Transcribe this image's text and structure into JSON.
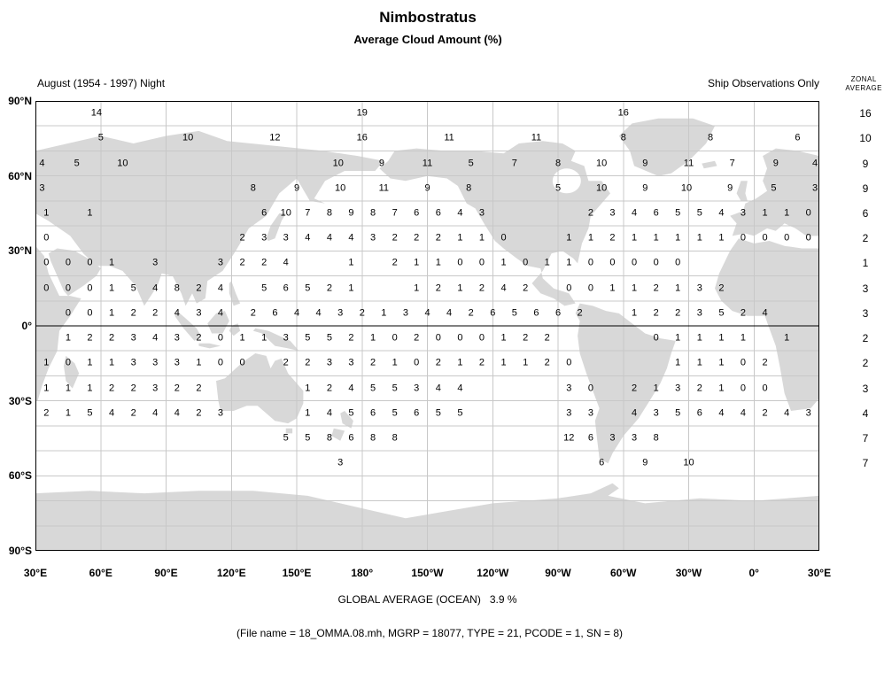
{
  "title": "Nimbostratus",
  "subtitle": "Average Cloud Amount (%)",
  "header": {
    "period_label": "August (1954 - 1997) Night",
    "source_label": "Ship Observations Only",
    "zonal_line1": "ZONAL",
    "zonal_line2": "AVERAGE"
  },
  "footer": {
    "global_average_label": "GLOBAL AVERAGE (OCEAN)   3.9 %",
    "file_info": "(File name = 18_OMMA.08.mh, MGRP = 18077, TYPE = 21, PCODE = 1, SN = 8)"
  },
  "chart_data": {
    "type": "heatmap",
    "title": "Nimbostratus — Average Cloud Amount (%)",
    "subtitle_left": "August (1954 - 1997) Night",
    "subtitle_right": "Ship Observations Only",
    "units": "percent cloud amount",
    "projection": "equirectangular world map; longitude axis runs eastward from 30°E through 180° back to 30°E (lon values 30..390)",
    "grid": "vertical lines every 30° longitude, horizontal lines every 10° latitude, equator drawn black",
    "lat_tick_labels": [
      "90°N",
      "60°N",
      "30°N",
      "0°",
      "30°S",
      "60°S",
      "90°S"
    ],
    "lat_tick_values": [
      90,
      60,
      30,
      0,
      -30,
      -60,
      -90
    ],
    "lon_tick_labels": [
      "30°E",
      "60°E",
      "90°E",
      "120°E",
      "150°E",
      "180°",
      "150°W",
      "120°W",
      "90°W",
      "60°W",
      "30°W",
      "0°",
      "30°E"
    ],
    "lon_tick_values": [
      30,
      60,
      90,
      120,
      150,
      180,
      210,
      240,
      270,
      300,
      330,
      360,
      390
    ],
    "global_average_ocean_percent": 3.9,
    "zonal_average_header": "ZONAL AVERAGE",
    "zonal_averages": [
      [
        85,
        16
      ],
      [
        75,
        10
      ],
      [
        65,
        9
      ],
      [
        55,
        9
      ],
      [
        45,
        6
      ],
      [
        35,
        2
      ],
      [
        25,
        1
      ],
      [
        15,
        3
      ],
      [
        5,
        3
      ],
      [
        -5,
        2
      ],
      [
        -15,
        2
      ],
      [
        -25,
        3
      ],
      [
        -35,
        4
      ],
      [
        -45,
        7
      ],
      [
        -55,
        7
      ]
    ],
    "rows": [
      {
        "lat": 85,
        "cells": [
          [
            58,
            14
          ],
          [
            180,
            19
          ],
          [
            300,
            16
          ]
        ]
      },
      {
        "lat": 75,
        "cells": [
          [
            60,
            5
          ],
          [
            100,
            10
          ],
          [
            140,
            12
          ],
          [
            180,
            16
          ],
          [
            220,
            11
          ],
          [
            260,
            11
          ],
          [
            300,
            8
          ],
          [
            340,
            8
          ],
          [
            380,
            6
          ]
        ]
      },
      {
        "lat": 65,
        "cells": [
          [
            33,
            4
          ],
          [
            49,
            5
          ],
          [
            70,
            10
          ],
          [
            169,
            10
          ],
          [
            189,
            9
          ],
          [
            210,
            11
          ],
          [
            230,
            5
          ],
          [
            250,
            7
          ],
          [
            270,
            8
          ],
          [
            290,
            10
          ],
          [
            310,
            9
          ],
          [
            330,
            11
          ],
          [
            350,
            7
          ],
          [
            370,
            9
          ],
          [
            388,
            4
          ]
        ]
      },
      {
        "lat": 55,
        "cells": [
          [
            33,
            3
          ],
          [
            130,
            8
          ],
          [
            150,
            9
          ],
          [
            170,
            10
          ],
          [
            190,
            11
          ],
          [
            210,
            9
          ],
          [
            229,
            8
          ],
          [
            270,
            5
          ],
          [
            290,
            10
          ],
          [
            310,
            9
          ],
          [
            329,
            10
          ],
          [
            349,
            9
          ],
          [
            369,
            5
          ],
          [
            388,
            3
          ]
        ]
      },
      {
        "lat": 45,
        "cells": [
          [
            35,
            1
          ],
          [
            55,
            1
          ],
          [
            135,
            6
          ],
          [
            145,
            10
          ],
          [
            155,
            7
          ],
          [
            165,
            8
          ],
          [
            175,
            9
          ],
          [
            185,
            8
          ],
          [
            195,
            7
          ],
          [
            205,
            6
          ],
          [
            215,
            6
          ],
          [
            225,
            4
          ],
          [
            235,
            3
          ],
          [
            285,
            2
          ],
          [
            295,
            3
          ],
          [
            305,
            4
          ],
          [
            315,
            6
          ],
          [
            325,
            5
          ],
          [
            335,
            5
          ],
          [
            345,
            4
          ],
          [
            355,
            3
          ],
          [
            365,
            1
          ],
          [
            375,
            1
          ],
          [
            385,
            0
          ]
        ]
      },
      {
        "lat": 35,
        "cells": [
          [
            35,
            0
          ],
          [
            125,
            2
          ],
          [
            135,
            3
          ],
          [
            145,
            3
          ],
          [
            155,
            4
          ],
          [
            165,
            4
          ],
          [
            175,
            4
          ],
          [
            185,
            3
          ],
          [
            195,
            2
          ],
          [
            205,
            2
          ],
          [
            215,
            2
          ],
          [
            225,
            1
          ],
          [
            235,
            1
          ],
          [
            245,
            0
          ],
          [
            275,
            1
          ],
          [
            285,
            1
          ],
          [
            295,
            2
          ],
          [
            305,
            1
          ],
          [
            315,
            1
          ],
          [
            325,
            1
          ],
          [
            335,
            1
          ],
          [
            345,
            1
          ],
          [
            355,
            0
          ],
          [
            365,
            0
          ],
          [
            375,
            0
          ],
          [
            385,
            0
          ]
        ]
      },
      {
        "lat": 25,
        "cells": [
          [
            35,
            0
          ],
          [
            45,
            0
          ],
          [
            55,
            0
          ],
          [
            65,
            1
          ],
          [
            85,
            3
          ],
          [
            115,
            3
          ],
          [
            125,
            2
          ],
          [
            135,
            2
          ],
          [
            145,
            4
          ],
          [
            175,
            1
          ],
          [
            195,
            2
          ],
          [
            205,
            1
          ],
          [
            215,
            1
          ],
          [
            225,
            0
          ],
          [
            235,
            0
          ],
          [
            245,
            1
          ],
          [
            255,
            0
          ],
          [
            265,
            1
          ],
          [
            275,
            1
          ],
          [
            285,
            0
          ],
          [
            295,
            0
          ],
          [
            305,
            0
          ],
          [
            315,
            0
          ],
          [
            325,
            0
          ]
        ]
      },
      {
        "lat": 15,
        "cells": [
          [
            35,
            0
          ],
          [
            45,
            0
          ],
          [
            55,
            0
          ],
          [
            65,
            1
          ],
          [
            75,
            5
          ],
          [
            85,
            4
          ],
          [
            95,
            8
          ],
          [
            105,
            2
          ],
          [
            115,
            4
          ],
          [
            135,
            5
          ],
          [
            145,
            6
          ],
          [
            155,
            5
          ],
          [
            165,
            2
          ],
          [
            175,
            1
          ],
          [
            205,
            1
          ],
          [
            215,
            2
          ],
          [
            225,
            1
          ],
          [
            235,
            2
          ],
          [
            245,
            4
          ],
          [
            255,
            2
          ],
          [
            275,
            0
          ],
          [
            285,
            0
          ],
          [
            295,
            1
          ],
          [
            305,
            1
          ],
          [
            315,
            2
          ],
          [
            325,
            1
          ],
          [
            335,
            3
          ],
          [
            345,
            2
          ]
        ]
      },
      {
        "lat": 5,
        "cells": [
          [
            45,
            0
          ],
          [
            55,
            0
          ],
          [
            65,
            1
          ],
          [
            75,
            2
          ],
          [
            85,
            2
          ],
          [
            95,
            4
          ],
          [
            105,
            3
          ],
          [
            115,
            4
          ],
          [
            130,
            2
          ],
          [
            140,
            6
          ],
          [
            150,
            4
          ],
          [
            160,
            4
          ],
          [
            170,
            3
          ],
          [
            180,
            2
          ],
          [
            190,
            1
          ],
          [
            200,
            3
          ],
          [
            210,
            4
          ],
          [
            220,
            4
          ],
          [
            230,
            2
          ],
          [
            240,
            6
          ],
          [
            250,
            5
          ],
          [
            260,
            6
          ],
          [
            270,
            6
          ],
          [
            280,
            2
          ],
          [
            305,
            1
          ],
          [
            315,
            2
          ],
          [
            325,
            2
          ],
          [
            335,
            3
          ],
          [
            345,
            5
          ],
          [
            355,
            2
          ],
          [
            365,
            4
          ]
        ]
      },
      {
        "lat": -5,
        "cells": [
          [
            45,
            1
          ],
          [
            55,
            2
          ],
          [
            65,
            2
          ],
          [
            75,
            3
          ],
          [
            85,
            4
          ],
          [
            95,
            3
          ],
          [
            105,
            2
          ],
          [
            115,
            0
          ],
          [
            125,
            1
          ],
          [
            135,
            1
          ],
          [
            145,
            3
          ],
          [
            155,
            5
          ],
          [
            165,
            5
          ],
          [
            175,
            2
          ],
          [
            185,
            1
          ],
          [
            195,
            0
          ],
          [
            205,
            2
          ],
          [
            215,
            0
          ],
          [
            225,
            0
          ],
          [
            235,
            0
          ],
          [
            245,
            1
          ],
          [
            255,
            2
          ],
          [
            265,
            2
          ],
          [
            315,
            0
          ],
          [
            325,
            1
          ],
          [
            335,
            1
          ],
          [
            345,
            1
          ],
          [
            355,
            1
          ],
          [
            375,
            1
          ]
        ]
      },
      {
        "lat": -15,
        "cells": [
          [
            35,
            1
          ],
          [
            45,
            0
          ],
          [
            55,
            1
          ],
          [
            65,
            1
          ],
          [
            75,
            3
          ],
          [
            85,
            3
          ],
          [
            95,
            3
          ],
          [
            105,
            1
          ],
          [
            115,
            0
          ],
          [
            125,
            0
          ],
          [
            145,
            2
          ],
          [
            155,
            2
          ],
          [
            165,
            3
          ],
          [
            175,
            3
          ],
          [
            185,
            2
          ],
          [
            195,
            1
          ],
          [
            205,
            0
          ],
          [
            215,
            2
          ],
          [
            225,
            1
          ],
          [
            235,
            2
          ],
          [
            245,
            1
          ],
          [
            255,
            1
          ],
          [
            265,
            2
          ],
          [
            275,
            0
          ],
          [
            325,
            1
          ],
          [
            335,
            1
          ],
          [
            345,
            1
          ],
          [
            355,
            0
          ],
          [
            365,
            2
          ]
        ]
      },
      {
        "lat": -25,
        "cells": [
          [
            35,
            1
          ],
          [
            45,
            1
          ],
          [
            55,
            1
          ],
          [
            65,
            2
          ],
          [
            75,
            2
          ],
          [
            85,
            3
          ],
          [
            95,
            2
          ],
          [
            105,
            2
          ],
          [
            155,
            1
          ],
          [
            165,
            2
          ],
          [
            175,
            4
          ],
          [
            185,
            5
          ],
          [
            195,
            5
          ],
          [
            205,
            3
          ],
          [
            215,
            4
          ],
          [
            225,
            4
          ],
          [
            275,
            3
          ],
          [
            285,
            0
          ],
          [
            305,
            2
          ],
          [
            315,
            1
          ],
          [
            325,
            3
          ],
          [
            335,
            2
          ],
          [
            345,
            1
          ],
          [
            355,
            0
          ],
          [
            365,
            0
          ]
        ]
      },
      {
        "lat": -35,
        "cells": [
          [
            35,
            2
          ],
          [
            45,
            1
          ],
          [
            55,
            5
          ],
          [
            65,
            4
          ],
          [
            75,
            2
          ],
          [
            85,
            4
          ],
          [
            95,
            4
          ],
          [
            105,
            2
          ],
          [
            115,
            3
          ],
          [
            155,
            1
          ],
          [
            165,
            4
          ],
          [
            175,
            5
          ],
          [
            185,
            6
          ],
          [
            195,
            5
          ],
          [
            205,
            6
          ],
          [
            215,
            5
          ],
          [
            225,
            5
          ],
          [
            275,
            3
          ],
          [
            285,
            3
          ],
          [
            305,
            4
          ],
          [
            315,
            3
          ],
          [
            325,
            5
          ],
          [
            335,
            6
          ],
          [
            345,
            4
          ],
          [
            355,
            4
          ],
          [
            365,
            2
          ],
          [
            375,
            4
          ],
          [
            385,
            3
          ]
        ]
      },
      {
        "lat": -45,
        "cells": [
          [
            145,
            5
          ],
          [
            155,
            5
          ],
          [
            165,
            8
          ],
          [
            175,
            6
          ],
          [
            185,
            8
          ],
          [
            195,
            8
          ],
          [
            275,
            12
          ],
          [
            285,
            6
          ],
          [
            295,
            3
          ],
          [
            305,
            3
          ],
          [
            315,
            8
          ]
        ]
      },
      {
        "lat": -55,
        "cells": [
          [
            170,
            3
          ],
          [
            290,
            6
          ],
          [
            310,
            9
          ],
          [
            330,
            10
          ]
        ]
      }
    ]
  }
}
